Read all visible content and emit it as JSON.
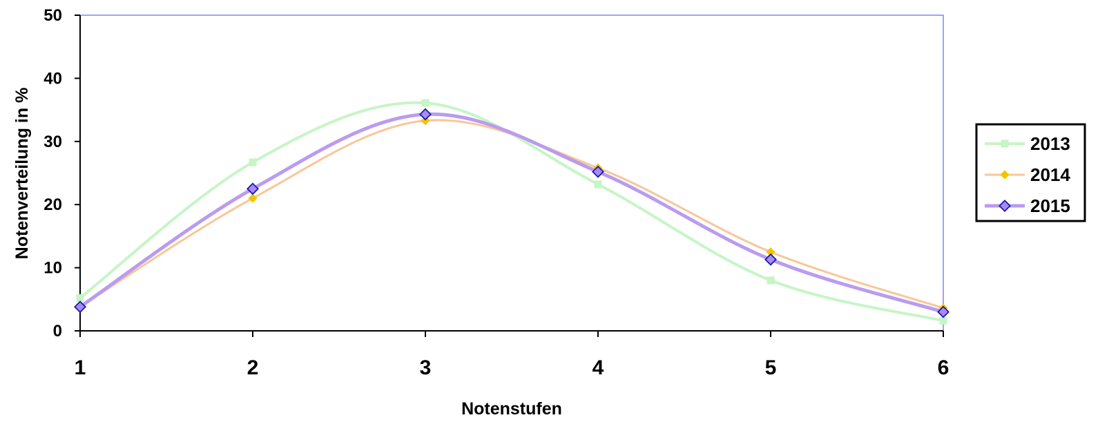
{
  "chart_data": {
    "type": "line",
    "xlabel": "Notenstufen",
    "ylabel": "Notenverteilung in %",
    "x": [
      1,
      2,
      3,
      4,
      5,
      6
    ],
    "xlim": [
      1,
      6
    ],
    "ylim": [
      0,
      50
    ],
    "y_ticks": [
      0,
      10,
      20,
      30,
      40,
      50
    ],
    "grid": false,
    "smooth": true,
    "legend_position": "right",
    "series": [
      {
        "name": "2013",
        "values": [
          5.2,
          26.7,
          36.1,
          23.2,
          8.0,
          1.6
        ],
        "color": "#c6f5c6",
        "marker": "square"
      },
      {
        "name": "2014",
        "values": [
          3.8,
          21.0,
          33.3,
          25.8,
          12.5,
          3.6
        ],
        "color": "#f9c697",
        "marker_color": "#f5c400",
        "marker": "diamond"
      },
      {
        "name": "2015",
        "values": [
          3.8,
          22.5,
          34.3,
          25.2,
          11.3,
          3.0
        ],
        "color": "#b99cf0",
        "marker_color": "#a88af5",
        "marker": "diamond-outline"
      }
    ],
    "plot_border_color": "#8080ff"
  }
}
